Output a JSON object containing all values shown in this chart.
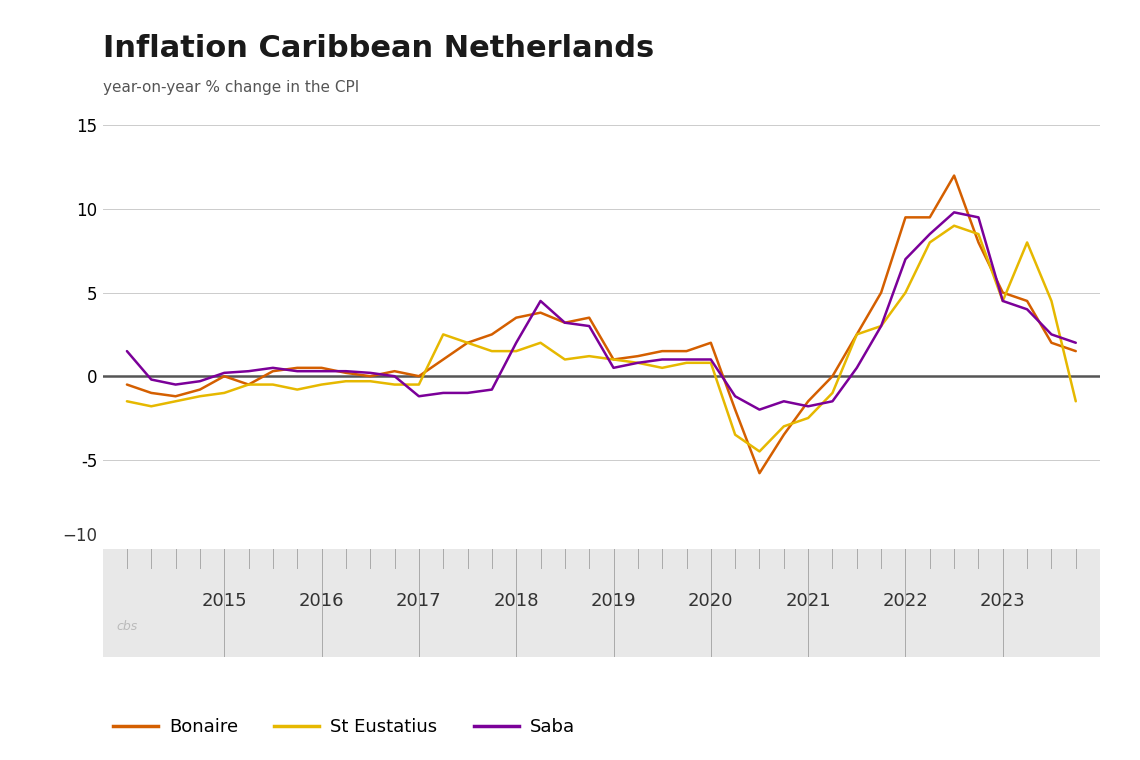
{
  "title": "Inflation Caribbean Netherlands",
  "subtitle": "year-on-year % change in the CPI",
  "ylim": [
    -10,
    15
  ],
  "yticks": [
    -10,
    -5,
    0,
    5,
    10,
    15
  ],
  "background_color": "#ffffff",
  "footer_area_color": "#e8e8e8",
  "colors": {
    "Bonaire": "#d45f00",
    "St Eustatius": "#e6b800",
    "Saba": "#7b0099"
  },
  "series": {
    "Bonaire": {
      "x": [
        2014.0,
        2014.25,
        2014.5,
        2014.75,
        2015.0,
        2015.25,
        2015.5,
        2015.75,
        2016.0,
        2016.25,
        2016.5,
        2016.75,
        2017.0,
        2017.25,
        2017.5,
        2017.75,
        2018.0,
        2018.25,
        2018.5,
        2018.75,
        2019.0,
        2019.25,
        2019.5,
        2019.75,
        2020.0,
        2020.25,
        2020.5,
        2020.75,
        2021.0,
        2021.25,
        2021.5,
        2021.75,
        2022.0,
        2022.25,
        2022.5,
        2022.75,
        2023.0,
        2023.25,
        2023.5,
        2023.75
      ],
      "y": [
        -0.5,
        -1.0,
        -1.2,
        -0.8,
        0.0,
        -0.5,
        0.3,
        0.5,
        0.5,
        0.2,
        0.0,
        0.3,
        0.0,
        1.0,
        2.0,
        2.5,
        3.5,
        3.8,
        3.2,
        3.5,
        1.0,
        1.2,
        1.5,
        1.5,
        2.0,
        -2.0,
        -5.8,
        -3.5,
        -1.5,
        0.0,
        2.5,
        5.0,
        9.5,
        9.5,
        12.0,
        8.0,
        5.0,
        4.5,
        2.0,
        1.5
      ]
    },
    "St Eustatius": {
      "x": [
        2014.0,
        2014.25,
        2014.5,
        2014.75,
        2015.0,
        2015.25,
        2015.5,
        2015.75,
        2016.0,
        2016.25,
        2016.5,
        2016.75,
        2017.0,
        2017.25,
        2017.5,
        2017.75,
        2018.0,
        2018.25,
        2018.5,
        2018.75,
        2019.0,
        2019.25,
        2019.5,
        2019.75,
        2020.0,
        2020.25,
        2020.5,
        2020.75,
        2021.0,
        2021.25,
        2021.5,
        2021.75,
        2022.0,
        2022.25,
        2022.5,
        2022.75,
        2023.0,
        2023.25,
        2023.5,
        2023.75
      ],
      "y": [
        -1.5,
        -1.8,
        -1.5,
        -1.2,
        -1.0,
        -0.5,
        -0.5,
        -0.8,
        -0.5,
        -0.3,
        -0.3,
        -0.5,
        -0.5,
        2.5,
        2.0,
        1.5,
        1.5,
        2.0,
        1.0,
        1.2,
        1.0,
        0.8,
        0.5,
        0.8,
        0.8,
        -3.5,
        -4.5,
        -3.0,
        -2.5,
        -1.0,
        2.5,
        3.0,
        5.0,
        8.0,
        9.0,
        8.5,
        4.5,
        8.0,
        4.5,
        -1.5
      ]
    },
    "Saba": {
      "x": [
        2014.0,
        2014.25,
        2014.5,
        2014.75,
        2015.0,
        2015.25,
        2015.5,
        2015.75,
        2016.0,
        2016.25,
        2016.5,
        2016.75,
        2017.0,
        2017.25,
        2017.5,
        2017.75,
        2018.0,
        2018.25,
        2018.5,
        2018.75,
        2019.0,
        2019.25,
        2019.5,
        2019.75,
        2020.0,
        2020.25,
        2020.5,
        2020.75,
        2021.0,
        2021.25,
        2021.5,
        2021.75,
        2022.0,
        2022.25,
        2022.5,
        2022.75,
        2023.0,
        2023.25,
        2023.5,
        2023.75
      ],
      "y": [
        1.5,
        -0.2,
        -0.5,
        -0.3,
        0.2,
        0.3,
        0.5,
        0.3,
        0.3,
        0.3,
        0.2,
        0.0,
        -1.2,
        -1.0,
        -1.0,
        -0.8,
        2.0,
        4.5,
        3.2,
        3.0,
        0.5,
        0.8,
        1.0,
        1.0,
        1.0,
        -1.2,
        -2.0,
        -1.5,
        -1.8,
        -1.5,
        0.5,
        3.0,
        7.0,
        8.5,
        9.8,
        9.5,
        4.5,
        4.0,
        2.5,
        2.0
      ]
    }
  },
  "xtick_positions": [
    2015,
    2016,
    2017,
    2018,
    2019,
    2020,
    2021,
    2022,
    2023
  ],
  "xlim": [
    2013.75,
    2024.0
  ],
  "title_fontsize": 22,
  "subtitle_fontsize": 11,
  "tick_fontsize": 12,
  "legend_fontsize": 13
}
